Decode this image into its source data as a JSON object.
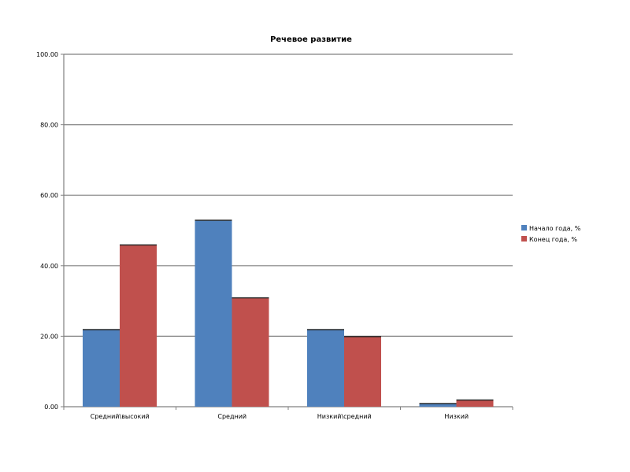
{
  "chart_data": {
    "type": "bar",
    "title": "Речевое развитие",
    "categories": [
      "Средний\\высокий",
      "Средний",
      "Низкий\\средний",
      "Низкий"
    ],
    "series": [
      {
        "name": "Начало года, %",
        "values": [
          22,
          53,
          22,
          1
        ],
        "color": "#4F81BD"
      },
      {
        "name": "Конец года, %",
        "values": [
          46,
          31,
          20,
          2
        ],
        "color": "#C0504D"
      }
    ],
    "xlabel": "",
    "ylabel": "",
    "ylim": [
      0,
      100
    ],
    "yticks": [
      0,
      20,
      40,
      60,
      80,
      100
    ],
    "ytick_labels": [
      "0.00",
      "20.00",
      "40.00",
      "60.00",
      "80.00",
      "100.00"
    ],
    "grid": true,
    "legend_position": "right"
  }
}
